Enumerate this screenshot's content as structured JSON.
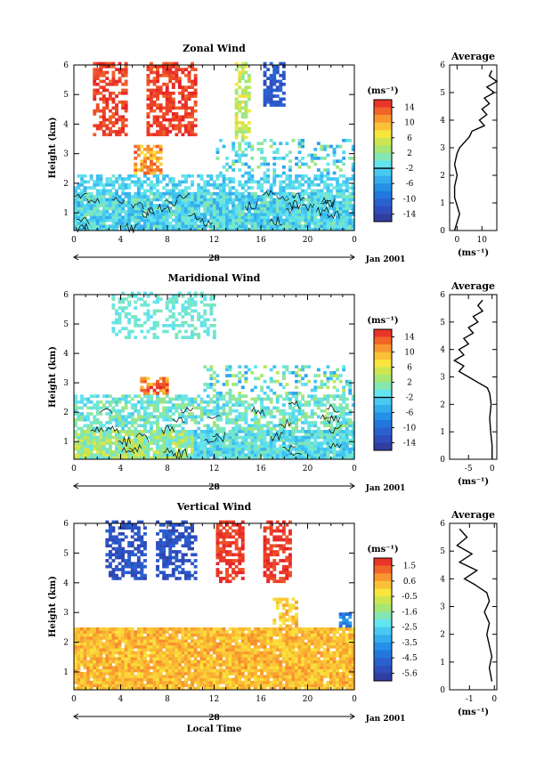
{
  "chart_data": [
    {
      "type": "heatmap",
      "id": "zonal",
      "title": "Zonal Wind",
      "ylabel": "Height (km)",
      "x_ticks": [
        "0",
        "4",
        "8",
        "12",
        "16",
        "20",
        "0"
      ],
      "y_ticks": [
        "1",
        "2",
        "3",
        "4",
        "5",
        "6"
      ],
      "xlim": [
        0,
        24
      ],
      "ylim": [
        0.4,
        6.0
      ],
      "day_label": "28",
      "date_label": "Jan 2001",
      "colorbar": {
        "unit": "(ms⁻¹)",
        "ticks": [
          "14",
          "10",
          "6",
          "2",
          "-2",
          "-6",
          "-10",
          "-14"
        ],
        "range": [
          -16,
          16
        ]
      },
      "profile": {
        "title": "Average",
        "xlabel": "(ms⁻¹)",
        "x_ticks": [
          "0",
          "10"
        ],
        "xlim": [
          -3,
          16
        ],
        "y_ticks": [
          "0",
          "1",
          "2",
          "3",
          "4",
          "5",
          "6"
        ],
        "ylim": [
          0,
          6
        ],
        "points": [
          [
            -1,
            0.0
          ],
          [
            0,
            0.3
          ],
          [
            1,
            0.6
          ],
          [
            0,
            0.9
          ],
          [
            -1,
            1.2
          ],
          [
            -1,
            1.6
          ],
          [
            0,
            2.0
          ],
          [
            -1,
            2.4
          ],
          [
            0,
            2.8
          ],
          [
            1,
            3.0
          ],
          [
            3,
            3.2
          ],
          [
            5,
            3.4
          ],
          [
            6,
            3.6
          ],
          [
            11,
            3.8
          ],
          [
            9,
            4.0
          ],
          [
            12,
            4.2
          ],
          [
            10,
            4.4
          ],
          [
            13,
            4.6
          ],
          [
            11,
            4.8
          ],
          [
            15,
            5.0
          ],
          [
            12,
            5.2
          ],
          [
            16,
            5.4
          ],
          [
            13,
            5.6
          ],
          [
            14,
            5.8
          ]
        ]
      }
    },
    {
      "type": "heatmap",
      "id": "meridional",
      "title": "Maridional Wind",
      "ylabel": "Height (km)",
      "x_ticks": [
        "0",
        "4",
        "8",
        "12",
        "16",
        "20",
        "0"
      ],
      "y_ticks": [
        "1",
        "2",
        "3",
        "4",
        "5",
        "6"
      ],
      "xlim": [
        0,
        24
      ],
      "ylim": [
        0.4,
        6.0
      ],
      "day_label": "28",
      "date_label": "Jan 2001",
      "colorbar": {
        "unit": "(ms⁻¹)",
        "ticks": [
          "14",
          "10",
          "6",
          "2",
          "-2",
          "-6",
          "-10",
          "-14"
        ],
        "range": [
          -16,
          16
        ]
      },
      "profile": {
        "title": "Average",
        "xlabel": "(ms⁻¹)",
        "x_ticks": [
          "-5",
          "0"
        ],
        "xlim": [
          -9,
          1
        ],
        "y_ticks": [
          "0",
          "1",
          "2",
          "3",
          "4",
          "5",
          "6"
        ],
        "ylim": [
          0,
          6
        ],
        "points": [
          [
            0,
            0.0
          ],
          [
            0,
            0.5
          ],
          [
            -0.3,
            1.0
          ],
          [
            -0.5,
            1.5
          ],
          [
            -0.2,
            2.0
          ],
          [
            -0.5,
            2.4
          ],
          [
            -1,
            2.6
          ],
          [
            -3,
            2.8
          ],
          [
            -5,
            3.0
          ],
          [
            -7,
            3.2
          ],
          [
            -6,
            3.4
          ],
          [
            -8,
            3.6
          ],
          [
            -6,
            3.8
          ],
          [
            -7,
            4.0
          ],
          [
            -5,
            4.2
          ],
          [
            -6,
            4.4
          ],
          [
            -4,
            4.6
          ],
          [
            -5,
            4.8
          ],
          [
            -3,
            5.0
          ],
          [
            -4,
            5.2
          ],
          [
            -2,
            5.4
          ],
          [
            -3,
            5.6
          ],
          [
            -2,
            5.8
          ]
        ]
      }
    },
    {
      "type": "heatmap",
      "id": "vertical",
      "title": "Vertical Wind",
      "ylabel": "Height (km)",
      "xlabel": "Local Time",
      "x_ticks": [
        "0",
        "4",
        "8",
        "12",
        "16",
        "20",
        "0"
      ],
      "y_ticks": [
        "1",
        "2",
        "3",
        "4",
        "5",
        "6"
      ],
      "xlim": [
        0,
        24
      ],
      "ylim": [
        0.4,
        6.0
      ],
      "day_label": "28",
      "date_label": "Jan 2001",
      "colorbar": {
        "unit": "(ms⁻¹)",
        "ticks": [
          "1.5",
          "0.6",
          "-0.5",
          "-1.6",
          "-2.5",
          "-3.5",
          "-4.5",
          "-5.6"
        ],
        "range": [
          -6,
          2
        ]
      },
      "profile": {
        "title": "Average",
        "xlabel": "(ms⁻¹)",
        "x_ticks": [
          "-1",
          "0"
        ],
        "xlim": [
          -1.8,
          0.1
        ],
        "y_ticks": [
          "0",
          "1",
          "2",
          "3",
          "4",
          "5",
          "6"
        ],
        "ylim": [
          0,
          6
        ],
        "points": [
          [
            -0.1,
            0.3
          ],
          [
            -0.2,
            0.8
          ],
          [
            -0.1,
            1.2
          ],
          [
            -0.2,
            1.6
          ],
          [
            -0.3,
            2.0
          ],
          [
            -0.2,
            2.4
          ],
          [
            -0.4,
            2.8
          ],
          [
            -0.2,
            3.2
          ],
          [
            -0.3,
            3.5
          ],
          [
            -0.8,
            3.8
          ],
          [
            -1.2,
            4.0
          ],
          [
            -0.7,
            4.3
          ],
          [
            -1.4,
            4.6
          ],
          [
            -0.9,
            4.9
          ],
          [
            -1.5,
            5.2
          ],
          [
            -1.1,
            5.5
          ],
          [
            -1.4,
            5.8
          ]
        ]
      }
    }
  ]
}
